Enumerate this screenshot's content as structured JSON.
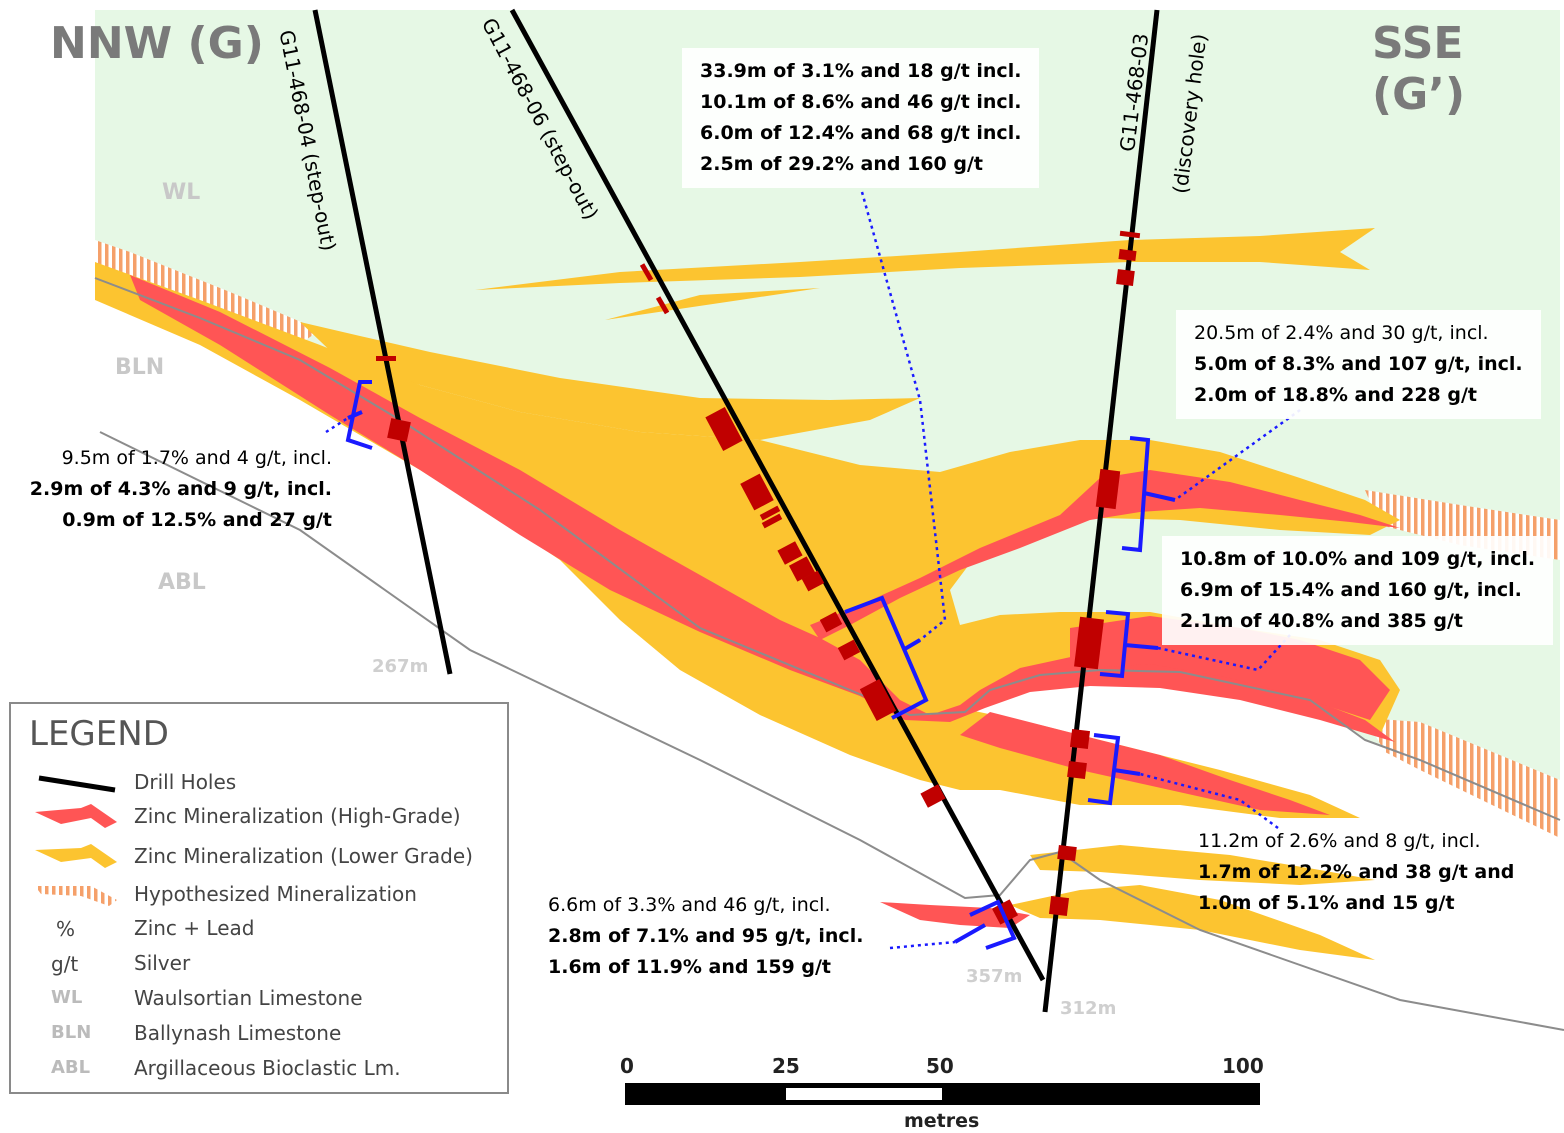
{
  "section": {
    "left_end": "NNW (G)",
    "right_end": "SSE (G’)"
  },
  "units": {
    "wl": "WL",
    "bln": "BLN",
    "abl": "ABL"
  },
  "holes": [
    {
      "name": "G11-468-04 (step-out)",
      "depth": "267m"
    },
    {
      "name": "G11-468-06 (step-out)",
      "depth": "357m"
    },
    {
      "name": "G11-468-03",
      "note": "(discovery hole)",
      "depth": "312m"
    }
  ],
  "intercepts": {
    "hole06_main": [
      "33.9m of 3.1% and 18 g/t incl.",
      "10.1m of 8.6% and 46 g/t incl.",
      "6.0m of 12.4% and 68 g/t incl.",
      "2.5m of 29.2% and 160 g/t"
    ],
    "hole04": [
      "9.5m of 1.7% and 4 g/t, incl.",
      "2.9m of 4.3% and 9 g/t, incl.",
      "0.9m of 12.5% and 27 g/t"
    ],
    "hole03_upper": [
      "20.5m of 2.4% and 30 g/t, incl.",
      "5.0m of 8.3% and 107 g/t, incl.",
      "2.0m of 18.8% and 228 g/t"
    ],
    "hole03_middle": [
      "10.8m of 10.0% and 109 g/t, incl.",
      "6.9m of 15.4% and 160 g/t, incl.",
      "2.1m of 40.8% and 385 g/t"
    ],
    "hole03_lower": [
      "11.2m of 2.6% and 8 g/t, incl.",
      "1.7m of 12.2% and 38 g/t and",
      "1.0m of 5.1% and 15 g/t"
    ],
    "hole06_lower": [
      "6.6m of 3.3% and 46 g/t, incl.",
      "2.8m of 7.1% and 95 g/t, incl.",
      "1.6m of 11.9% and 159 g/t"
    ]
  },
  "legend": {
    "title": "LEGEND",
    "items": [
      {
        "symbol": "drill-line",
        "label": "Drill Holes"
      },
      {
        "symbol": "high-grade",
        "label": "Zinc Mineralization (High-Grade)"
      },
      {
        "symbol": "lower-grade",
        "label": "Zinc Mineralization  (Lower Grade)"
      },
      {
        "symbol": "hypothesized",
        "label": "Hypothesized Mineralization"
      },
      {
        "symbol": "%",
        "label": "Zinc + Lead"
      },
      {
        "symbol": "g/t",
        "label": "Silver"
      },
      {
        "symbol": "WL",
        "label": "Waulsortian Limestone"
      },
      {
        "symbol": "BLN",
        "label": "Ballynash Limestone"
      },
      {
        "symbol": "ABL",
        "label": "Argillaceous Bioclastic Lm."
      }
    ]
  },
  "scale": {
    "ticks": [
      "0",
      "25",
      "50",
      "100"
    ],
    "unit": "metres"
  },
  "colors": {
    "wl_fill": "#e6f8e5",
    "high_grade": "#ff5555",
    "lower_grade": "#fcc430",
    "hypothesized": "#f5a06a",
    "intercept": "#c00000",
    "bracket": "#1a1aff",
    "contact": "#8c8c8c"
  }
}
